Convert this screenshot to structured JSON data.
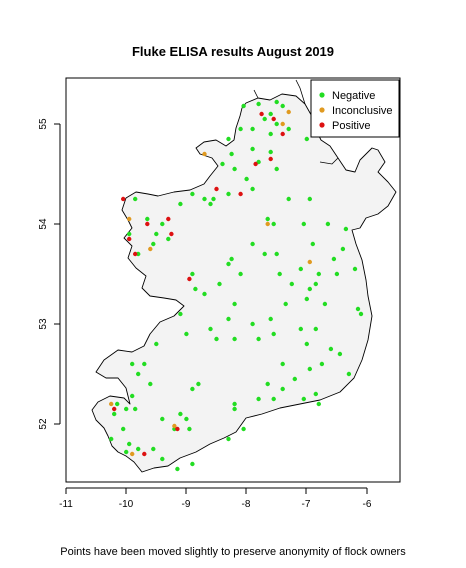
{
  "chart_data": {
    "type": "scatter",
    "title": "Fluke ELISA results August 2019",
    "caption": "Points have been moved slightly to preserve anonymity of flock owners",
    "xlim": [
      -11,
      -6
    ],
    "ylim": [
      51,
      56
    ],
    "x_ticks": [
      "-11",
      "-10",
      "-9",
      "-8",
      "-7",
      "-6"
    ],
    "y_ticks": [
      "52",
      "53",
      "54",
      "55"
    ],
    "legend_position": "top-right",
    "series": [
      {
        "name": "Negative",
        "color": "#22dd22",
        "points": [
          [
            -8.05,
            55.18
          ],
          [
            -7.8,
            55.2
          ],
          [
            -7.5,
            55.22
          ],
          [
            -7.4,
            55.18
          ],
          [
            -7.7,
            55.05
          ],
          [
            -7.5,
            55.0
          ],
          [
            -7.9,
            54.95
          ],
          [
            -7.3,
            54.95
          ],
          [
            -7.6,
            54.9
          ],
          [
            -8.1,
            54.95
          ],
          [
            -8.3,
            54.85
          ],
          [
            -8.25,
            54.7
          ],
          [
            -7.9,
            54.75
          ],
          [
            -7.6,
            54.72
          ],
          [
            -8.4,
            54.6
          ],
          [
            -8.2,
            54.55
          ],
          [
            -7.8,
            54.62
          ],
          [
            -7.5,
            54.55
          ],
          [
            -8.0,
            54.45
          ],
          [
            -7.9,
            54.35
          ],
          [
            -8.55,
            54.25
          ],
          [
            -8.3,
            54.3
          ],
          [
            -8.7,
            54.25
          ],
          [
            -8.6,
            54.2
          ],
          [
            -9.1,
            54.2
          ],
          [
            -8.9,
            54.3
          ],
          [
            -7.3,
            54.25
          ],
          [
            -6.95,
            54.25
          ],
          [
            -7.65,
            54.05
          ],
          [
            -7.55,
            54.0
          ],
          [
            -7.05,
            54.0
          ],
          [
            -6.65,
            54.0
          ],
          [
            -6.35,
            53.95
          ],
          [
            -6.4,
            53.75
          ],
          [
            -6.55,
            53.65
          ],
          [
            -6.2,
            53.55
          ],
          [
            -6.5,
            53.5
          ],
          [
            -6.8,
            53.5
          ],
          [
            -6.85,
            53.4
          ],
          [
            -7.1,
            53.55
          ],
          [
            -7.25,
            53.4
          ],
          [
            -7.45,
            53.5
          ],
          [
            -7.7,
            53.7
          ],
          [
            -7.5,
            53.7
          ],
          [
            -7.9,
            53.8
          ],
          [
            -8.25,
            53.65
          ],
          [
            -8.3,
            53.6
          ],
          [
            -8.1,
            53.5
          ],
          [
            -8.45,
            53.4
          ],
          [
            -8.7,
            53.3
          ],
          [
            -8.9,
            53.5
          ],
          [
            -8.85,
            53.35
          ],
          [
            -9.1,
            53.1
          ],
          [
            -8.2,
            53.2
          ],
          [
            -8.3,
            53.05
          ],
          [
            -7.9,
            53.0
          ],
          [
            -7.6,
            53.05
          ],
          [
            -7.35,
            53.2
          ],
          [
            -7.0,
            53.25
          ],
          [
            -6.7,
            53.2
          ],
          [
            -6.85,
            52.95
          ],
          [
            -7.1,
            52.95
          ],
          [
            -7.55,
            52.9
          ],
          [
            -7.8,
            52.85
          ],
          [
            -8.2,
            52.85
          ],
          [
            -8.5,
            52.85
          ],
          [
            -8.6,
            52.95
          ],
          [
            -9.0,
            52.9
          ],
          [
            -9.5,
            52.8
          ],
          [
            -9.9,
            52.6
          ],
          [
            -9.7,
            52.6
          ],
          [
            -9.8,
            52.5
          ],
          [
            -9.6,
            52.4
          ],
          [
            -9.9,
            52.28
          ],
          [
            -10.15,
            52.2
          ],
          [
            -10.0,
            52.15
          ],
          [
            -10.2,
            52.1
          ],
          [
            -10.05,
            51.95
          ],
          [
            -10.25,
            51.85
          ],
          [
            -9.95,
            51.8
          ],
          [
            -10.0,
            51.72
          ],
          [
            -9.8,
            51.75
          ],
          [
            -9.55,
            51.75
          ],
          [
            -9.4,
            51.65
          ],
          [
            -9.15,
            51.55
          ],
          [
            -8.9,
            51.6
          ],
          [
            -8.95,
            51.95
          ],
          [
            -9.0,
            52.05
          ],
          [
            -9.1,
            52.1
          ],
          [
            -8.8,
            52.4
          ],
          [
            -8.9,
            52.35
          ],
          [
            -8.2,
            52.2
          ],
          [
            -8.2,
            52.15
          ],
          [
            -7.8,
            52.25
          ],
          [
            -7.65,
            52.4
          ],
          [
            -7.4,
            52.35
          ],
          [
            -7.2,
            52.45
          ],
          [
            -6.95,
            52.55
          ],
          [
            -6.75,
            52.6
          ],
          [
            -7.4,
            52.6
          ],
          [
            -7.0,
            52.8
          ],
          [
            -6.6,
            52.75
          ],
          [
            -6.45,
            52.7
          ],
          [
            -6.3,
            52.5
          ],
          [
            -6.85,
            52.3
          ],
          [
            -7.05,
            52.25
          ],
          [
            -7.55,
            52.25
          ],
          [
            -6.8,
            52.2
          ],
          [
            -6.15,
            53.15
          ],
          [
            -6.1,
            53.1
          ],
          [
            -8.3,
            51.85
          ],
          [
            -8.05,
            51.95
          ],
          [
            -9.4,
            52.05
          ],
          [
            -9.2,
            51.95
          ],
          [
            -9.85,
            52.15
          ],
          [
            -9.3,
            53.85
          ],
          [
            -9.55,
            53.8
          ],
          [
            -9.8,
            53.7
          ],
          [
            -9.95,
            53.9
          ],
          [
            -9.65,
            54.05
          ],
          [
            -9.5,
            53.9
          ],
          [
            -9.4,
            54.0
          ],
          [
            -9.85,
            54.25
          ],
          [
            -7.0,
            54.85
          ],
          [
            -7.6,
            55.1
          ],
          [
            -6.9,
            53.8
          ],
          [
            -6.95,
            53.35
          ]
        ]
      },
      {
        "name": "Inconclusive",
        "color": "#e09a20",
        "points": [
          [
            -8.7,
            54.7
          ],
          [
            -7.4,
            55.0
          ],
          [
            -9.95,
            54.05
          ],
          [
            -9.6,
            53.75
          ],
          [
            -6.95,
            53.62
          ],
          [
            -7.65,
            54.0
          ],
          [
            -10.25,
            52.2
          ],
          [
            -9.2,
            51.98
          ],
          [
            -9.9,
            51.7
          ],
          [
            -7.3,
            55.12
          ]
        ]
      },
      {
        "name": "Positive",
        "color": "#dd1111",
        "points": [
          [
            -10.05,
            54.25
          ],
          [
            -9.65,
            54.0
          ],
          [
            -9.3,
            54.05
          ],
          [
            -9.25,
            53.9
          ],
          [
            -8.95,
            53.45
          ],
          [
            -9.85,
            53.7
          ],
          [
            -9.95,
            53.85
          ],
          [
            -10.2,
            52.15
          ],
          [
            -9.15,
            51.95
          ],
          [
            -8.5,
            54.35
          ],
          [
            -8.1,
            54.3
          ],
          [
            -7.85,
            54.6
          ],
          [
            -7.6,
            54.65
          ],
          [
            -7.4,
            54.9
          ],
          [
            -7.75,
            55.1
          ],
          [
            -7.55,
            55.05
          ],
          [
            -9.7,
            51.7
          ]
        ]
      }
    ]
  }
}
